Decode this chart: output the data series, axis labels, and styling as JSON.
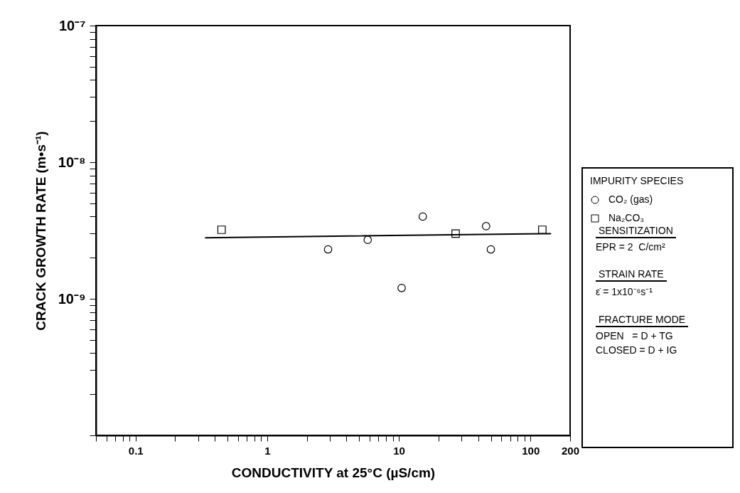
{
  "chart_data": {
    "type": "scatter",
    "xlabel": "CONDUCTIVITY at 25°C (µS/cm)",
    "ylabel": "CRACK GROWTH RATE (m•s⁻¹)",
    "legend_title": "IMPURITY SPECIES",
    "log": "xy",
    "grid": false,
    "legend": "right",
    "xlim": [
      0.05,
      200
    ],
    "ylim": [
      1e-10,
      1e-07
    ],
    "xticks": [
      {
        "value": 0.05,
        "label": null
      },
      {
        "value": 0.06,
        "label": null
      },
      {
        "value": 0.07,
        "label": null
      },
      {
        "value": 0.08,
        "label": null
      },
      {
        "value": 0.09,
        "label": null
      },
      0.1,
      {
        "value": 0.2,
        "label": null
      },
      {
        "value": 0.3,
        "label": null
      },
      {
        "value": 0.4,
        "label": null
      },
      {
        "value": 0.5,
        "label": null
      },
      {
        "value": 0.6,
        "label": null
      },
      {
        "value": 0.7,
        "label": null
      },
      {
        "value": 0.8,
        "label": null
      },
      {
        "value": 0.9,
        "label": null
      },
      1,
      {
        "value": 2,
        "label": null
      },
      {
        "value": 3,
        "label": null
      },
      {
        "value": 4,
        "label": null
      },
      {
        "value": 5,
        "label": null
      },
      {
        "value": 6,
        "label": null
      },
      {
        "value": 7,
        "label": null
      },
      {
        "value": 8,
        "label": null
      },
      {
        "value": 9,
        "label": null
      },
      10,
      {
        "value": 20,
        "label": null
      },
      {
        "value": 30,
        "label": null
      },
      {
        "value": 40,
        "label": null
      },
      {
        "value": 50,
        "label": null
      },
      {
        "value": 60,
        "label": null
      },
      {
        "value": 70,
        "label": null
      },
      {
        "value": 80,
        "label": null
      },
      {
        "value": 90,
        "label": null
      },
      100,
      200
    ],
    "yticks": [
      {
        "value": 1e-10,
        "label": null
      },
      {
        "value": 2e-10,
        "label": null
      },
      {
        "value": 3e-10,
        "label": null
      },
      {
        "value": 4e-10,
        "label": null
      },
      {
        "value": 5e-10,
        "label": null
      },
      {
        "value": 6e-10,
        "label": null
      },
      {
        "value": 7e-10,
        "label": null
      },
      {
        "value": 8e-10,
        "label": null
      },
      {
        "value": 9e-10,
        "label": null
      },
      {
        "value": 1e-09,
        "label": "10⁻⁹"
      },
      {
        "value": 2e-09,
        "label": null
      },
      {
        "value": 3e-09,
        "label": null
      },
      {
        "value": 4e-09,
        "label": null
      },
      {
        "value": 5e-09,
        "label": null
      },
      {
        "value": 6e-09,
        "label": null
      },
      {
        "value": 7e-09,
        "label": null
      },
      {
        "value": 8e-09,
        "label": null
      },
      {
        "value": 9e-09,
        "label": null
      },
      {
        "value": 1e-08,
        "label": "10⁻⁸"
      },
      {
        "value": 2e-08,
        "label": null
      },
      {
        "value": 3e-08,
        "label": null
      },
      {
        "value": 4e-08,
        "label": null
      },
      {
        "value": 5e-08,
        "label": null
      },
      {
        "value": 6e-08,
        "label": null
      },
      {
        "value": 7e-08,
        "label": null
      },
      {
        "value": 8e-08,
        "label": null
      },
      {
        "value": 9e-08,
        "label": null
      },
      {
        "value": 1e-07,
        "label": "10⁻⁷"
      }
    ],
    "series": [
      {
        "name": "CO₂ (gas)",
        "marker": "circle",
        "color": "#000000",
        "x": [
          2.9,
          5.8,
          10.5,
          15.2,
          46,
          50
        ],
        "values": [
          2.3e-09,
          2.7e-09,
          1.2e-09,
          4e-09,
          3.4e-09,
          2.3e-09
        ]
      },
      {
        "name": "Na₂CO₃",
        "marker": "square",
        "color": "#000000",
        "x": [
          0.45,
          27,
          123
        ],
        "values": [
          3.2e-09,
          3e-09,
          3.2e-09
        ]
      },
      {
        "type": "line",
        "color": "#000000",
        "x": [
          0.34,
          142
        ],
        "values": [
          2.8e-09,
          3e-09
        ]
      }
    ],
    "annotations": [
      "SENSITIZATION",
      "EPR = 2  C/cm²",
      "STRAIN RATE",
      "ε̇ = 1x10⁻⁶s⁻¹",
      "FRACTURE MODE",
      "OPEN   = D + TG",
      "CLOSED = D + IG"
    ]
  }
}
